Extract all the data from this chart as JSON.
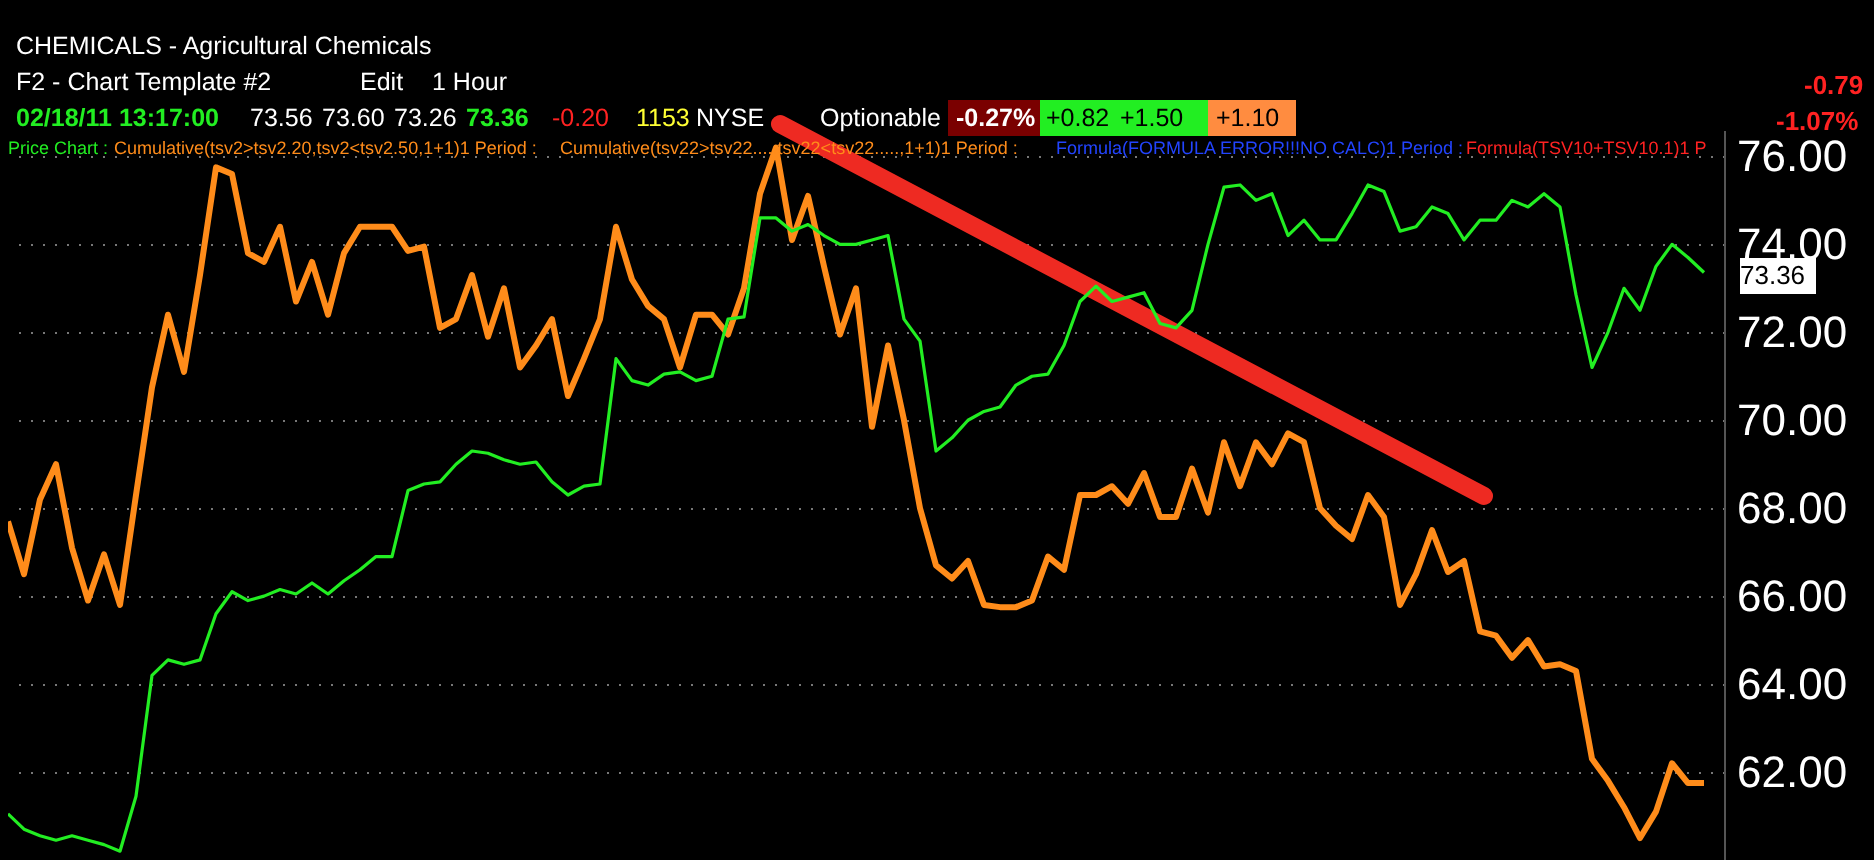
{
  "chart_data": {
    "type": "line",
    "categories": [
      null,
      null,
      null,
      null,
      null,
      null,
      null,
      null,
      null,
      null,
      null,
      null,
      null,
      null,
      null,
      null,
      null,
      null,
      null,
      null,
      null,
      null,
      null,
      null,
      null,
      null,
      null,
      null,
      null,
      null,
      null,
      null,
      null,
      null,
      null,
      null,
      null,
      null,
      null,
      null,
      null,
      null,
      null,
      null,
      null,
      null,
      null,
      null,
      null,
      null,
      null,
      null,
      null,
      null,
      null,
      null,
      null,
      null,
      null,
      null,
      null,
      null,
      null,
      null,
      null,
      null,
      null,
      null,
      null,
      null,
      null,
      null,
      null,
      null,
      null,
      null,
      null,
      null,
      null,
      null,
      null,
      null,
      null,
      null,
      null,
      null,
      null,
      null,
      null,
      null,
      null,
      null,
      null,
      null,
      null,
      null,
      null,
      null,
      null,
      null,
      null,
      null,
      null,
      null,
      null,
      null,
      null
    ],
    "series": [
      {
        "color": "#ff8c1a",
        "values": [
          67.7,
          66.5,
          68.2,
          69.0,
          67.1,
          65.9,
          66.95,
          65.8,
          68.3,
          70.75,
          72.4,
          71.1,
          73.3,
          75.75,
          75.6,
          73.8,
          73.6,
          74.4,
          72.7,
          73.6,
          72.4,
          73.8,
          74.4,
          74.4,
          74.4,
          73.85,
          73.95,
          72.1,
          72.3,
          73.3,
          71.9,
          73.0,
          71.2,
          71.7,
          72.3,
          70.55,
          71.4,
          72.3,
          74.4,
          73.2,
          72.6,
          72.3,
          71.2,
          72.4,
          72.4,
          71.95,
          73.0,
          75.15,
          76.2,
          74.1,
          75.1,
          73.5,
          71.95,
          73.0,
          69.85,
          71.7,
          70.0,
          68.0,
          66.7,
          66.4,
          66.8,
          65.8,
          65.75,
          65.75,
          65.9,
          66.9,
          66.6,
          68.3,
          68.3,
          68.5,
          68.1,
          68.8,
          67.8,
          67.8,
          68.9,
          67.9,
          69.5,
          68.5,
          69.5,
          69.0,
          69.7,
          69.5,
          68.0,
          67.6,
          67.3,
          68.3,
          67.8,
          65.8,
          66.5,
          67.5,
          66.55,
          66.8,
          65.2,
          65.1,
          64.6,
          65.0,
          64.4,
          64.45,
          64.3,
          62.3,
          61.8,
          61.2,
          60.5,
          61.1,
          62.2,
          61.75,
          61.75
        ]
      },
      {
        "color": "#22ee22",
        "values": [
          61.05,
          60.7,
          60.55,
          60.45,
          60.55,
          60.45,
          60.35,
          60.2,
          61.45,
          64.2,
          64.55,
          64.45,
          64.55,
          65.6,
          66.1,
          65.9,
          66.0,
          66.15,
          66.05,
          66.3,
          66.05,
          66.35,
          66.6,
          66.9,
          66.9,
          68.4,
          68.55,
          68.6,
          69.0,
          69.3,
          69.25,
          69.1,
          69.0,
          69.05,
          68.6,
          68.3,
          68.5,
          68.55,
          71.4,
          70.9,
          70.8,
          71.05,
          71.1,
          70.9,
          71.0,
          72.3,
          72.35,
          74.6,
          74.6,
          74.3,
          74.45,
          74.2,
          74.0,
          74.0,
          74.1,
          74.2,
          72.3,
          71.8,
          69.3,
          69.6,
          70.0,
          70.2,
          70.3,
          70.8,
          71.0,
          71.05,
          71.7,
          72.7,
          73.05,
          72.7,
          72.8,
          72.9,
          72.2,
          72.1,
          72.5,
          74.0,
          75.3,
          75.35,
          75.0,
          75.15,
          74.2,
          74.55,
          74.1,
          74.1,
          74.7,
          75.35,
          75.2,
          74.3,
          74.4,
          74.85,
          74.7,
          74.1,
          74.55,
          74.55,
          75.0,
          74.85,
          75.15,
          74.85,
          72.85,
          71.2,
          72.0,
          73.0,
          72.5,
          73.5,
          74.0,
          73.7,
          73.36
        ]
      }
    ],
    "ylim": [
      60,
      76.6
    ],
    "yticks": [
      {
        "value": 62,
        "label": "62.00"
      },
      {
        "value": 64,
        "label": "64.00"
      },
      {
        "value": 66,
        "label": "66.00"
      },
      {
        "value": 68,
        "label": "68.00"
      },
      {
        "value": 70,
        "label": "70.00"
      },
      {
        "value": 72,
        "label": "72.00"
      },
      {
        "value": 74,
        "label": "74.00"
      },
      {
        "value": 76,
        "label": "76.00"
      }
    ],
    "grid": "y",
    "tick_labels": "y",
    "line_style": "solid",
    "annotations": [
      "CHEMICALS - Agricultural Chemicals",
      "F2 - Chart Template #2",
      "Edit",
      "1 Hour",
      "02/18/11 13:17:00",
      "73.56",
      "73.60",
      "73.26",
      "73.36",
      "-0.20",
      "1153",
      "NYSE",
      "Optionable",
      "-0.27%",
      "+0.82",
      "+1.50",
      "+1.10",
      "-0.79",
      "-1.07%",
      "Price Chart :",
      "Cumulative(tsv2>tsv2.20,tsv2<tsv2.50,1+1)1 Period :",
      "Cumulative(tsv22>tsv22.....tsv22<tsv22.....,1+1)1 Period :",
      "Formula(FORMULA ERROR!!!NO CALC)1 Period :",
      "Formula(TSV10+TSV10.1)1 P",
      "73.36"
    ]
  }
}
